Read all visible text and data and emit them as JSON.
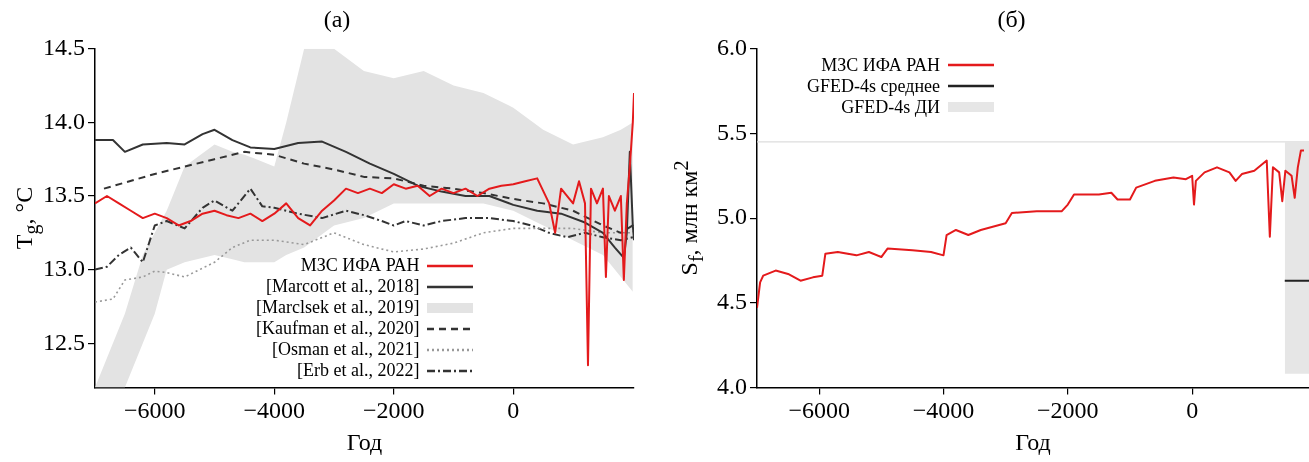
{
  "chart_data": [
    {
      "type": "line",
      "title": "(a)",
      "xlabel": "Год",
      "ylabel": "T$_{g}$, °C",
      "xlim": [
        -7000,
        2020
      ],
      "xticks": [
        {
          "value": -6000,
          "label": "−6000"
        },
        {
          "value": -4000,
          "label": "−4000"
        },
        {
          "value": -2000,
          "label": "−2000"
        },
        0
      ],
      "ylim": [
        12.2,
        14.5
      ],
      "yticks": [
        12.5,
        {
          "value": 13,
          "label": "13.0"
        },
        13.5,
        {
          "value": 14,
          "label": "14.0"
        },
        14.5
      ],
      "legend": "bottom",
      "marker": "none",
      "series": [
        {
          "name": "МЗС ИФА РАН",
          "color": "#e41a1c",
          "line_style": "solid",
          "x": [
            -7000,
            -6800,
            -6600,
            -6400,
            -6200,
            -6000,
            -5800,
            -5600,
            -5400,
            -5200,
            -5000,
            -4800,
            -4600,
            -4400,
            -4200,
            -4000,
            -3800,
            -3600,
            -3400,
            -3200,
            -3000,
            -2800,
            -2600,
            -2400,
            -2200,
            -2000,
            -1800,
            -1600,
            -1400,
            -1200,
            -1000,
            -800,
            -600,
            -400,
            -200,
            0,
            200,
            400,
            600,
            700,
            800,
            1000,
            1100,
            1200,
            1250,
            1300,
            1400,
            1500,
            1550,
            1600,
            1700,
            1800,
            1850,
            1900,
            1950,
            2000,
            2020
          ],
          "values": [
            13.45,
            13.5,
            13.45,
            13.4,
            13.35,
            13.38,
            13.35,
            13.3,
            13.33,
            13.38,
            13.4,
            13.37,
            13.35,
            13.38,
            13.33,
            13.38,
            13.45,
            13.35,
            13.3,
            13.4,
            13.47,
            13.55,
            13.52,
            13.55,
            13.52,
            13.58,
            13.55,
            13.57,
            13.5,
            13.55,
            13.52,
            13.55,
            13.5,
            13.55,
            13.57,
            13.58,
            13.6,
            13.62,
            13.45,
            13.25,
            13.55,
            13.45,
            13.6,
            13.45,
            12.35,
            13.55,
            13.45,
            13.55,
            12.95,
            13.5,
            13.4,
            13.5,
            12.93,
            13.45,
            13.7,
            14.0,
            14.2
          ]
        },
        {
          "name": "[Marcott et al., 2018]",
          "color": "#333333",
          "line_style": "solid",
          "x": [
            -7000,
            -6700,
            -6500,
            -6200,
            -5800,
            -5500,
            -5200,
            -5000,
            -4700,
            -4400,
            -4000,
            -3600,
            -3200,
            -2800,
            -2400,
            -2000,
            -1600,
            -1200,
            -800,
            -400,
            0,
            400,
            800,
            1200,
            1500,
            1700,
            1850,
            1900,
            1950,
            2000,
            2020
          ],
          "values": [
            13.88,
            13.88,
            13.8,
            13.85,
            13.86,
            13.85,
            13.92,
            13.95,
            13.88,
            13.83,
            13.82,
            13.86,
            13.87,
            13.8,
            13.72,
            13.65,
            13.57,
            13.53,
            13.5,
            13.5,
            13.44,
            13.4,
            13.38,
            13.32,
            13.25,
            13.15,
            13.08,
            13.25,
            13.8,
            13.3,
            13.2
          ]
        },
        {
          "type": "area",
          "name": "[Marclsek et al., 2019]",
          "color": "#e3e3e3",
          "x": [
            -7000,
            -6800,
            -6500,
            -6200,
            -6000,
            -5800,
            -5500,
            -5000,
            -4700,
            -4500,
            -4300,
            -4000,
            -3800,
            -3500,
            -3000,
            -2500,
            -2000,
            -1500,
            -1000,
            -500,
            0,
            500,
            1000,
            1500,
            1800,
            2000
          ],
          "values": [
            null,
            null,
            null,
            null,
            null,
            null,
            null,
            null,
            null,
            null,
            null,
            null,
            null,
            null,
            null,
            null,
            null,
            null,
            null,
            null,
            null,
            null,
            null,
            null,
            null,
            null
          ],
          "lower": [
            12.2,
            12.2,
            12.2,
            12.5,
            12.7,
            13.0,
            13.05,
            13.1,
            13.07,
            13.05,
            13.05,
            13.05,
            13.1,
            13.15,
            13.3,
            13.35,
            13.45,
            13.45,
            13.45,
            13.45,
            13.4,
            13.3,
            13.2,
            13.1,
            12.95,
            12.85
          ],
          "upper": [
            12.2,
            12.4,
            12.7,
            13.1,
            13.25,
            13.4,
            13.7,
            13.85,
            13.8,
            13.78,
            13.75,
            13.7,
            14.0,
            14.5,
            14.5,
            14.35,
            14.3,
            14.35,
            14.25,
            14.2,
            14.1,
            13.95,
            13.85,
            13.9,
            13.95,
            14.0
          ]
        },
        {
          "name": "[Kaufman et al., 2020]",
          "color": "#333333",
          "line_style": "dashed",
          "x": [
            -6850,
            -6000,
            -5000,
            -4500,
            -4000,
            -3500,
            -3000,
            -2500,
            -2000,
            -1500,
            -1000,
            -500,
            0,
            500,
            1000,
            1500,
            1800,
            2000,
            2020
          ],
          "values": [
            13.55,
            13.65,
            13.75,
            13.8,
            13.78,
            13.72,
            13.68,
            13.63,
            13.62,
            13.57,
            13.55,
            13.52,
            13.48,
            13.45,
            13.4,
            13.3,
            13.25,
            13.3,
            13.25
          ]
        },
        {
          "name": "[Osman et al., 2021]",
          "color": "#999999",
          "line_style": "dotted",
          "x": [
            -7000,
            -6700,
            -6500,
            -6200,
            -6000,
            -5800,
            -5500,
            -5000,
            -4700,
            -4400,
            -4000,
            -3500,
            -3000,
            -2500,
            -2000,
            -1500,
            -1000,
            -500,
            0,
            500,
            1000,
            1500,
            2000
          ],
          "values": [
            12.78,
            12.8,
            12.93,
            12.95,
            12.99,
            12.98,
            12.95,
            13.05,
            13.15,
            13.2,
            13.2,
            13.17,
            13.25,
            13.17,
            13.12,
            13.14,
            13.18,
            13.25,
            13.28,
            13.28,
            13.28,
            13.25,
            13.25
          ]
        },
        {
          "name": "[Erb et al., 2022]",
          "color": "#333333",
          "line_style": "dashdot",
          "x": [
            -7000,
            -6800,
            -6600,
            -6400,
            -6200,
            -6000,
            -5800,
            -5500,
            -5200,
            -5000,
            -4700,
            -4400,
            -4200,
            -4000,
            -3600,
            -3200,
            -2800,
            -2500,
            -2200,
            -2000,
            -1800,
            -1500,
            -1200,
            -800,
            -400,
            0,
            300,
            600,
            900,
            1200,
            1500,
            1800,
            2000
          ],
          "values": [
            13.0,
            13.02,
            13.1,
            13.15,
            13.05,
            13.3,
            13.33,
            13.28,
            13.42,
            13.47,
            13.4,
            13.55,
            13.43,
            13.42,
            13.38,
            13.35,
            13.4,
            13.37,
            13.33,
            13.3,
            13.33,
            13.3,
            13.33,
            13.35,
            13.35,
            13.33,
            13.3,
            13.25,
            13.22,
            13.25,
            13.22,
            13.2,
            13.22
          ]
        }
      ]
    },
    {
      "type": "line",
      "title": "(б)",
      "xlabel": "Год",
      "ylabel": "S$_{f}$, млн км$^{2}$",
      "xlim": [
        -7000,
        1880
      ],
      "xticks": [
        {
          "value": -6000,
          "label": "−6000"
        },
        {
          "value": -4000,
          "label": "−4000"
        },
        {
          "value": -2000,
          "label": "−2000"
        },
        0
      ],
      "ylim": [
        4,
        6
      ],
      "yticks": [
        {
          "value": 4,
          "label": "4.0"
        },
        4.5,
        {
          "value": 5,
          "label": "5.0"
        },
        5.5,
        {
          "value": 6,
          "label": "6.0"
        }
      ],
      "legend": "top left",
      "marker": "none",
      "ref_lines": [
        {
          "axis": "y",
          "value": 5.45,
          "color": "#dddddd"
        }
      ],
      "series": [
        {
          "name": "МЗС ИФА РАН",
          "color": "#e41a1c",
          "line_style": "solid",
          "x": [
            -7000,
            -6950,
            -6900,
            -6700,
            -6500,
            -6300,
            -6100,
            -5950,
            -5900,
            -5700,
            -5400,
            -5200,
            -5000,
            -4900,
            -4500,
            -4200,
            -4000,
            -3950,
            -3800,
            -3600,
            -3400,
            -3000,
            -2900,
            -2500,
            -2100,
            -2000,
            -1900,
            -1500,
            -1300,
            -1200,
            -1000,
            -900,
            -600,
            -300,
            -100,
            0,
            30,
            60,
            200,
            400,
            600,
            700,
            800,
            1000,
            1200,
            1250,
            1300,
            1400,
            1450,
            1500,
            1600,
            1650,
            1700,
            1750,
            1800
          ],
          "values": [
            4.47,
            4.62,
            4.66,
            4.69,
            4.67,
            4.63,
            4.65,
            4.66,
            4.79,
            4.8,
            4.78,
            4.8,
            4.77,
            4.82,
            4.81,
            4.8,
            4.78,
            4.9,
            4.93,
            4.9,
            4.93,
            4.97,
            5.03,
            5.04,
            5.04,
            5.08,
            5.14,
            5.14,
            5.15,
            5.11,
            5.11,
            5.18,
            5.22,
            5.24,
            5.23,
            5.25,
            5.08,
            5.22,
            5.27,
            5.3,
            5.27,
            5.22,
            5.26,
            5.28,
            5.34,
            4.89,
            5.3,
            5.27,
            5.1,
            5.28,
            5.25,
            5.12,
            5.3,
            5.4,
            5.4
          ]
        },
        {
          "name": "GFED-4s среднее",
          "color": "#222222",
          "line_style": "solid",
          "x": [
            1490,
            1880
          ],
          "values": [
            4.63,
            4.63
          ]
        },
        {
          "type": "area",
          "name": "GFED-4s ДИ",
          "color": "#e6e6e6",
          "x": [
            1490,
            1880
          ],
          "values": [
            null,
            null
          ],
          "lower": [
            4.08,
            4.08
          ],
          "upper": [
            5.45,
            5.45
          ]
        }
      ]
    }
  ]
}
